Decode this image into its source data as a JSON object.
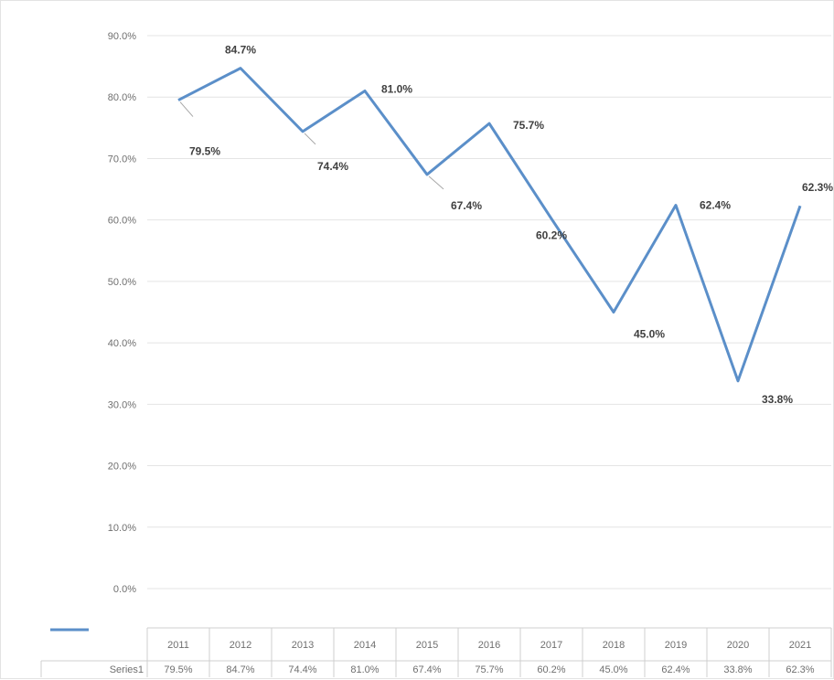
{
  "chart_data": {
    "type": "line",
    "categories": [
      "2011",
      "2012",
      "2013",
      "2014",
      "2015",
      "2016",
      "2017",
      "2018",
      "2019",
      "2020",
      "2021"
    ],
    "series": [
      {
        "name": "Series1",
        "values": [
          79.5,
          84.7,
          74.4,
          81.0,
          67.4,
          75.7,
          60.2,
          45.0,
          62.4,
          33.8,
          62.3
        ],
        "labels": [
          "79.5%",
          "84.7%",
          "74.4%",
          "81.0%",
          "67.4%",
          "75.7%",
          "60.2%",
          "45.0%",
          "62.4%",
          "33.8%",
          "62.3%"
        ]
      }
    ],
    "yticks": [
      "0.0%",
      "10.0%",
      "20.0%",
      "30.0%",
      "40.0%",
      "50.0%",
      "60.0%",
      "70.0%",
      "80.0%",
      "90.0%"
    ],
    "ylim": [
      0,
      90
    ],
    "grid": true,
    "legend": "data-table",
    "colors": {
      "series": "#5b8fc9",
      "grid": "#e4e4e4",
      "text": "#6f6f6f",
      "label": "#404040"
    }
  }
}
